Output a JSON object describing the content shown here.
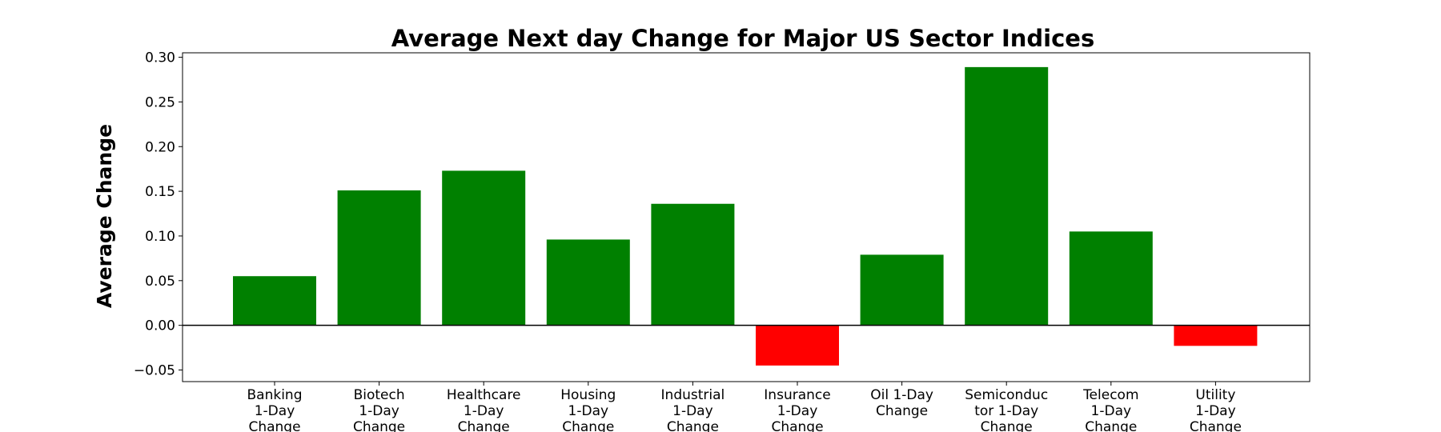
{
  "chart_data": {
    "type": "bar",
    "title": "Average Next day Change for Major US Sector Indices",
    "xlabel": "",
    "ylabel": "Average Change",
    "categories": [
      [
        "Banking",
        "1-Day",
        "Change"
      ],
      [
        "Biotech",
        "1-Day",
        "Change"
      ],
      [
        "Healthcare",
        "1-Day",
        "Change"
      ],
      [
        "Housing",
        "1-Day",
        "Change"
      ],
      [
        "Industrial",
        "1-Day",
        "Change"
      ],
      [
        "Insurance",
        "1-Day",
        "Change"
      ],
      [
        "Oil 1-Day",
        "Change"
      ],
      [
        "Semiconduc",
        "tor 1-Day",
        "Change"
      ],
      [
        "Telecom",
        "1-Day",
        "Change"
      ],
      [
        "Utility",
        "1-Day",
        "Change"
      ]
    ],
    "values": [
      0.055,
      0.151,
      0.173,
      0.096,
      0.136,
      -0.045,
      0.079,
      0.289,
      0.105,
      -0.023
    ],
    "ylim": [
      -0.063,
      0.305
    ],
    "yticks": [
      -0.05,
      0.0,
      0.05,
      0.1,
      0.15,
      0.2,
      0.25,
      0.3
    ],
    "ytick_labels": [
      "−0.05",
      "0.00",
      "0.05",
      "0.10",
      "0.15",
      "0.20",
      "0.25",
      "0.30"
    ],
    "colors": {
      "positive": "#008000",
      "negative": "#ff0000",
      "zero_line": "#000000"
    },
    "grid": false,
    "legend": "none"
  }
}
